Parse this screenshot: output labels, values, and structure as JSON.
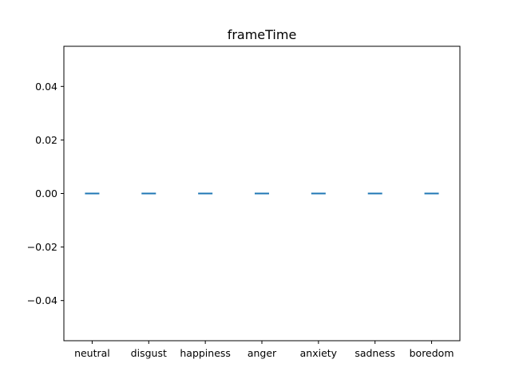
{
  "chart_data": {
    "type": "box",
    "title": "frameTime",
    "xlabel": "",
    "ylabel": "",
    "categories": [
      "neutral",
      "disgust",
      "happiness",
      "anger",
      "anxiety",
      "sadness",
      "boredom"
    ],
    "values": [
      0,
      0,
      0,
      0,
      0,
      0,
      0
    ],
    "ylim": [
      -0.055,
      0.055
    ],
    "yticks": [
      -0.04,
      -0.02,
      0.0,
      0.02,
      0.04
    ],
    "ytick_labels": [
      "−0.04",
      "−0.02",
      "0.00",
      "0.02",
      "0.04"
    ],
    "grid": false,
    "color": "#1f77b4"
  }
}
